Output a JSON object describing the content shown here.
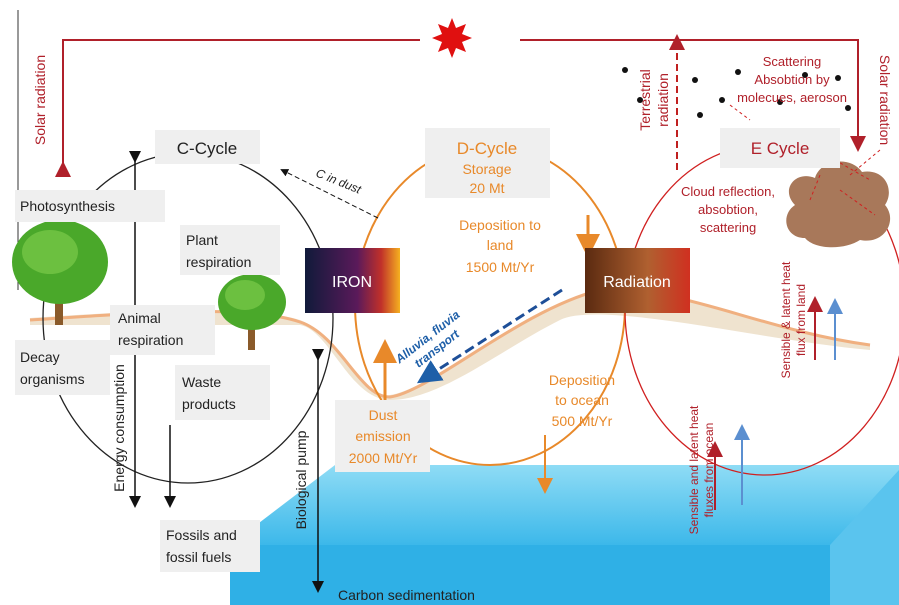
{
  "solar_left": "Solar radiation",
  "solar_right": "Solar radiation",
  "c_cycle": {
    "title": "C-Cycle",
    "c_in_dust": "C in dust",
    "photosynthesis": "Photosynthesis",
    "plant_respiration": [
      "Plant",
      "respiration"
    ],
    "animal_respiration": [
      "Animal",
      "respiration"
    ],
    "decay": [
      "Decay",
      "organisms"
    ],
    "waste": [
      "Waste",
      "products"
    ],
    "energy": "Energy consumption",
    "fossils": [
      "Fossils and",
      "fossil fuels"
    ],
    "biological_pump": "Biological pump",
    "sedimentation": "Carbon sedimentation",
    "iron": "IRON"
  },
  "d_cycle": {
    "title": "D-Cycle",
    "storage": [
      "Storage",
      "20 Mt"
    ],
    "deposition_land": [
      "Deposition to",
      "land",
      "1500 Mt/Yr"
    ],
    "transport": [
      "Alluvia, fluvia",
      "transport"
    ],
    "dust_emission": [
      "Dust",
      "emission",
      "2000 Mt/Yr"
    ],
    "deposition_ocean": [
      "Deposition",
      "to ocean",
      "500 Mt/Yr"
    ],
    "radiation": "Radiation"
  },
  "e_cycle": {
    "title": "E Cycle",
    "terrestrial": [
      "Terrestrial",
      "radiation"
    ],
    "scattering": [
      "Scattering",
      "Absobtion by",
      "molecues, aeroson"
    ],
    "cloud": [
      "Cloud reflection,",
      "absobtion,",
      "scattering"
    ],
    "land_flux": [
      "Sensible & latent heat",
      "flux from land"
    ],
    "ocean_flux": [
      "Sensible and latent heat",
      "fluxes from ocean"
    ]
  }
}
